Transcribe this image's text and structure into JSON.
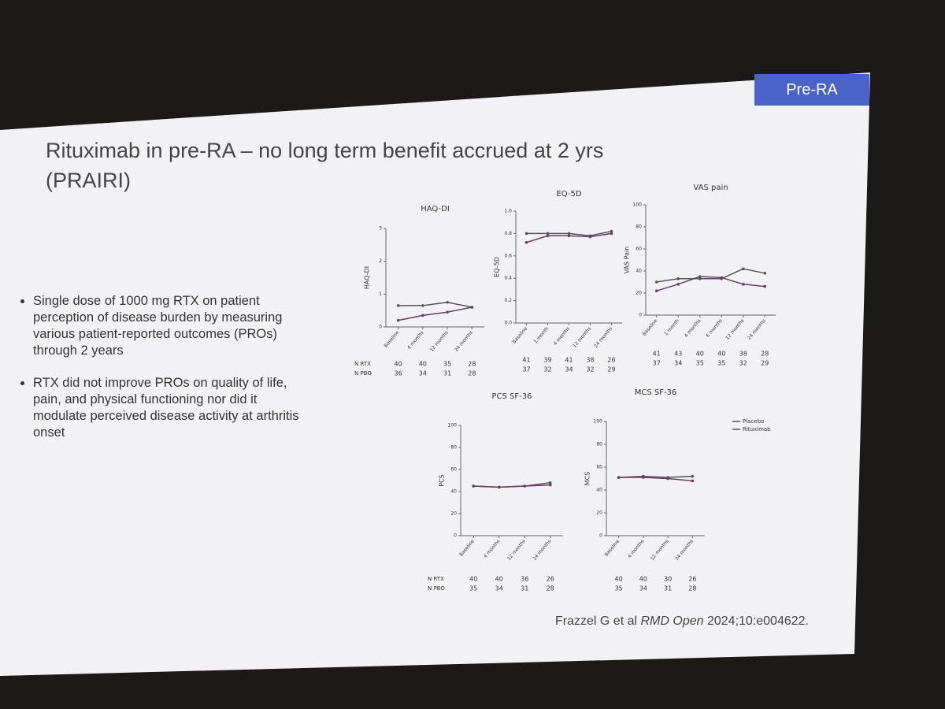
{
  "slide": {
    "tag": "Pre-RA",
    "title": "Rituximab in pre-RA – no long term benefit accrued at 2 yrs (PRAIRI)",
    "bullets": [
      "Single dose of 1000 mg RTX on patient perception of disease burden by measuring various patient-reported outcomes (PROs) through 2 years",
      "RTX did not improve PROs on quality of life, pain, and physical functioning nor did it modulate perceived disease activity at arthritis onset"
    ],
    "citation": {
      "authors": "Frazzel G et al",
      "journal": "RMD Open",
      "ref": "2024;10:e004622."
    }
  },
  "chart_data": [
    {
      "type": "line",
      "title": "HAQ-DI",
      "ylabel": "HAQ-DI",
      "categories": [
        "Baseline",
        "4 months",
        "12 months",
        "24 months"
      ],
      "ylim": [
        0,
        3
      ],
      "yticks": [
        0,
        1,
        2,
        3
      ],
      "series": [
        {
          "color": "#555555",
          "values": [
            0.65,
            0.65,
            0.75,
            0.6
          ]
        },
        {
          "color": "#6b3b6b",
          "values": [
            0.2,
            0.35,
            0.45,
            0.6
          ]
        }
      ],
      "n_table": [
        {
          "label": "N RTX",
          "values": [
            40,
            40,
            35,
            28
          ]
        },
        {
          "label": "N PBO",
          "values": [
            36,
            34,
            31,
            28
          ]
        }
      ]
    },
    {
      "type": "line",
      "title": "EQ-5D",
      "ylabel": "EQ-5D",
      "categories": [
        "Baseline",
        "1 month",
        "4 months",
        "12 months",
        "24 months"
      ],
      "ylim": [
        0,
        1
      ],
      "yticks": [
        {
          "value": 0,
          "label": "0.0"
        },
        0.2,
        0.4,
        0.6,
        0.8,
        {
          "value": 1,
          "label": "1.0"
        }
      ],
      "series": [
        {
          "color": "#555555",
          "values": [
            0.8,
            0.8,
            0.8,
            0.78,
            0.82
          ]
        },
        {
          "color": "#6b3b6b",
          "values": [
            0.72,
            0.78,
            0.78,
            0.77,
            0.8
          ]
        }
      ],
      "n_table": [
        {
          "values": [
            41,
            39,
            41,
            38,
            26
          ]
        },
        {
          "values": [
            37,
            32,
            34,
            32,
            29
          ]
        }
      ]
    },
    {
      "type": "line",
      "title": "VAS pain",
      "ylabel": "VAS Pain",
      "categories": [
        "Baseline",
        "1 month",
        "4 months",
        "6 months",
        "12 months",
        "24 months"
      ],
      "ylim": [
        0,
        100
      ],
      "yticks": [
        0,
        20,
        40,
        60,
        80,
        100
      ],
      "series": [
        {
          "color": "#555555",
          "values": [
            30,
            33,
            33,
            33,
            42,
            38
          ]
        },
        {
          "color": "#6b3b6b",
          "values": [
            22,
            28,
            35,
            34,
            28,
            26
          ]
        }
      ],
      "n_table": [
        {
          "values": [
            41,
            43,
            40,
            40,
            38,
            28
          ]
        },
        {
          "values": [
            37,
            34,
            35,
            35,
            32,
            29
          ]
        }
      ]
    },
    {
      "type": "line",
      "title": "PCS SF-36",
      "ylabel": "PCS",
      "categories": [
        "Baseline",
        "4 months",
        "12 months",
        "24 months"
      ],
      "ylim": [
        0,
        100
      ],
      "yticks": [
        0,
        20,
        40,
        60,
        80,
        100
      ],
      "series": [
        {
          "color": "#555555",
          "values": [
            45,
            44,
            45,
            48
          ]
        },
        {
          "color": "#6b3b6b",
          "values": [
            45,
            44,
            45,
            46
          ]
        }
      ],
      "n_table": [
        {
          "label": "N RTX",
          "values": [
            40,
            40,
            36,
            26
          ]
        },
        {
          "label": "N PBO",
          "values": [
            35,
            34,
            31,
            28
          ]
        }
      ]
    },
    {
      "type": "line",
      "title": "MCS SF-36",
      "ylabel": "MCS",
      "categories": [
        "Baseline",
        "4 months",
        "12 months",
        "24 months"
      ],
      "ylim": [
        0,
        100
      ],
      "yticks": [
        0,
        20,
        40,
        60,
        80,
        100
      ],
      "legend": "right",
      "series": [
        {
          "name": "Placebo",
          "color": "#555555",
          "values": [
            51,
            52,
            51,
            52
          ]
        },
        {
          "name": "Rituximab",
          "color": "#6b3b6b",
          "values": [
            51,
            51,
            50,
            48
          ]
        }
      ],
      "n_table": [
        {
          "values": [
            40,
            40,
            30,
            26
          ]
        },
        {
          "values": [
            35,
            34,
            31,
            28
          ]
        }
      ]
    }
  ]
}
